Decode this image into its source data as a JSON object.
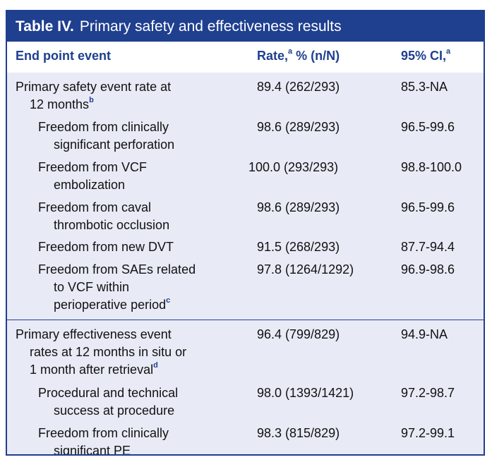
{
  "table": {
    "title_label": "Table IV.",
    "title_text": "Primary safety and effectiveness results",
    "headers": {
      "endpoint": "End point event",
      "rate": "Rate,",
      "rate_sup": "a",
      "rate_suffix": " % (n/N)",
      "ci": "95% CI,",
      "ci_sup": "a"
    },
    "section1": {
      "main": {
        "line1": "Primary safety event rate at",
        "line2": "12 months",
        "sup": "b",
        "rate": "89.4 (262/293)",
        "ci": "85.3-NA"
      },
      "rows": [
        {
          "line1": "Freedom from clinically",
          "line2": "significant perforation",
          "rate": "98.6 (289/293)",
          "ci": "96.5-99.6"
        },
        {
          "line1": "Freedom from VCF",
          "line2": "embolization",
          "rate": "100.0 (293/293)",
          "ci": "98.8-100.0"
        },
        {
          "line1": "Freedom from caval",
          "line2": "thrombotic occlusion",
          "rate": "98.6 (289/293)",
          "ci": "96.5-99.6"
        },
        {
          "line1": "Freedom from new DVT",
          "line2": "",
          "rate": "91.5 (268/293)",
          "ci": "87.7-94.4"
        },
        {
          "line1": "Freedom from SAEs related",
          "line2": "to VCF within",
          "line3": "perioperative period",
          "sup": "c",
          "rate": "97.8 (1264/1292)",
          "ci": "96.9-98.6"
        }
      ]
    },
    "section2": {
      "main": {
        "line1": "Primary effectiveness event",
        "line2": "rates at 12 months in situ or",
        "line3": "1 month after retrieval",
        "sup": "d",
        "rate": "96.4 (799/829)",
        "ci": "94.9-NA"
      },
      "rows": [
        {
          "line1": "Procedural and technical",
          "line2": "success at procedure",
          "rate": "98.0 (1393/1421)",
          "ci": "97.2-98.7"
        },
        {
          "line1": "Freedom from clinically",
          "line2": "significant PE",
          "rate": "98.3 (815/829)",
          "ci": "97.2-99.1"
        }
      ]
    }
  }
}
